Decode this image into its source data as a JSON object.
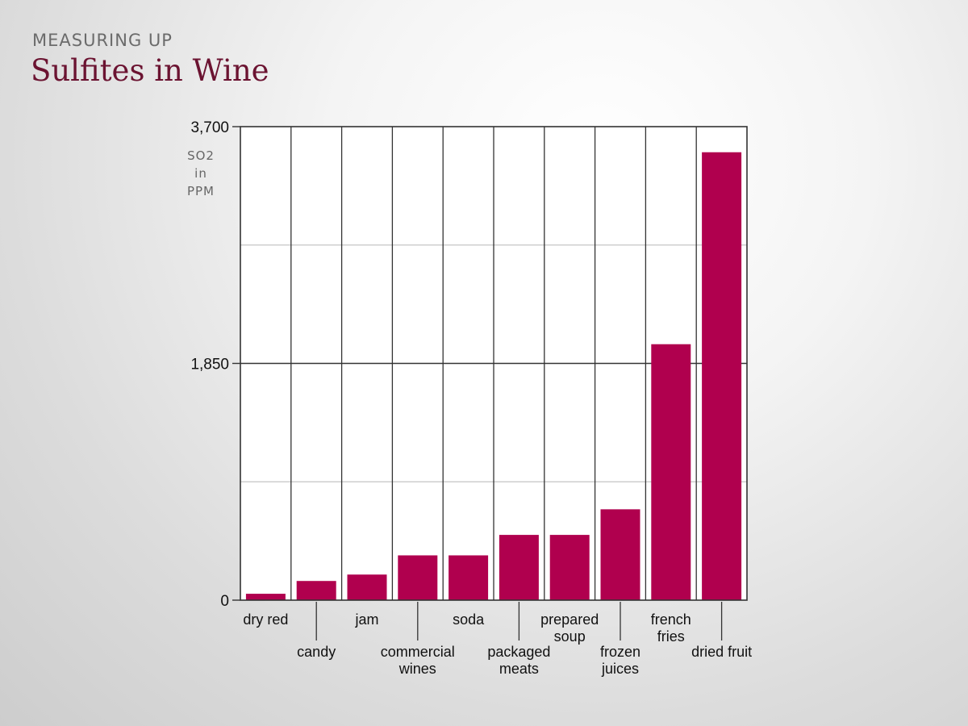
{
  "header": {
    "kicker": "MEASURING UP",
    "title": "Sulfites in Wine"
  },
  "chart_data": {
    "type": "bar",
    "title": "Sulfites in Wine",
    "ylabel": "SO2 in PPM",
    "ylim": [
      0,
      3700
    ],
    "yticks": [
      0,
      1850,
      3700
    ],
    "ytick_labels": [
      "0",
      "1,850",
      "3,700"
    ],
    "grid": true,
    "bar_color": "#b0004e",
    "categories": [
      "dry red",
      "candy",
      "jam",
      "commercial wines",
      "soda",
      "packaged meats",
      "prepared soup",
      "frozen juices",
      "french fries",
      "dried fruit"
    ],
    "category_lines": [
      [
        "dry red"
      ],
      [
        "candy"
      ],
      [
        "jam"
      ],
      [
        "commercial",
        "wines"
      ],
      [
        "soda"
      ],
      [
        "packaged",
        "meats"
      ],
      [
        "prepared",
        "soup"
      ],
      [
        "frozen",
        "juices"
      ],
      [
        "french",
        "fries"
      ],
      [
        "dried fruit"
      ]
    ],
    "values": [
      50,
      150,
      200,
      350,
      350,
      510,
      510,
      710,
      2000,
      3500
    ]
  }
}
